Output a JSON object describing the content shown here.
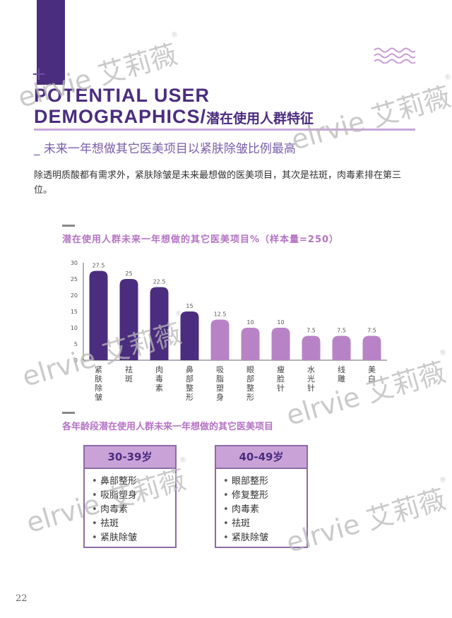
{
  "header": {
    "title_line1": "POTENTIAL USER",
    "title_line2_en": "DEMOGRAPHICS/",
    "title_line2_cn": "潜在使用人群特征",
    "subtitle": "_ 未来一年想做其它医美项目以紧肤除皱比例最高"
  },
  "body_text": "除透明质酸都有需求外，紧肤除皱是未来最想做的医美项目，其次是祛斑，肉毒素排在第三位。",
  "chart_data": {
    "type": "bar",
    "title": "潜在使用人群未来一年想做的其它医美项目%（样本量=250）",
    "categories": [
      "紧肤除皱",
      "祛斑",
      "肉毒素",
      "鼻部整形",
      "吸脂塑身",
      "眼部整形",
      "瘦脸针",
      "水光针",
      "线雕",
      "美白"
    ],
    "category_lines": [
      [
        "紧",
        "肤",
        "除",
        "皱"
      ],
      [
        "祛",
        "斑"
      ],
      [
        "肉",
        "毒",
        "素"
      ],
      [
        "鼻",
        "部",
        "整",
        "形"
      ],
      [
        "吸",
        "脂",
        "塑",
        "身"
      ],
      [
        "眼",
        "部",
        "整",
        "形"
      ],
      [
        "瘦",
        "脸",
        "针"
      ],
      [
        "水",
        "光",
        "针"
      ],
      [
        "线",
        "雕"
      ],
      [
        "美",
        "白"
      ]
    ],
    "values": [
      27.5,
      25,
      22.5,
      15,
      12.5,
      10,
      10,
      7.5,
      7.5,
      7.5
    ],
    "value_labels": [
      "27.5",
      "25",
      "22.5",
      "15",
      "12.5",
      "10",
      "10",
      "7.5",
      "7.5",
      "7.5"
    ],
    "yticks": [
      "30",
      "25",
      "20",
      "15",
      "10",
      "5",
      "0"
    ],
    "ylim": [
      0,
      30
    ],
    "colors": {
      "dark": "#4b2d7f",
      "light": "#b883c6"
    },
    "dark_count": 4
  },
  "age_section": {
    "title": "各年龄段潜在使用人群未来一年想做的其它医美项目",
    "cards": [
      {
        "label": "30-39岁",
        "items": [
          "鼻部整形",
          "吸脂塑身",
          "肉毒素",
          "祛斑",
          "紧肤除皱"
        ]
      },
      {
        "label": "40-49岁",
        "items": [
          "眼部整形",
          "修复整形",
          "肉毒素",
          "祛斑",
          "紧肤除皱"
        ]
      }
    ]
  },
  "watermark": {
    "text": "elrvie 艾莉薇",
    "reg": "®"
  },
  "page_number": "22",
  "colors": {
    "primary": "#4b2d7f",
    "accent": "#b474c4"
  }
}
